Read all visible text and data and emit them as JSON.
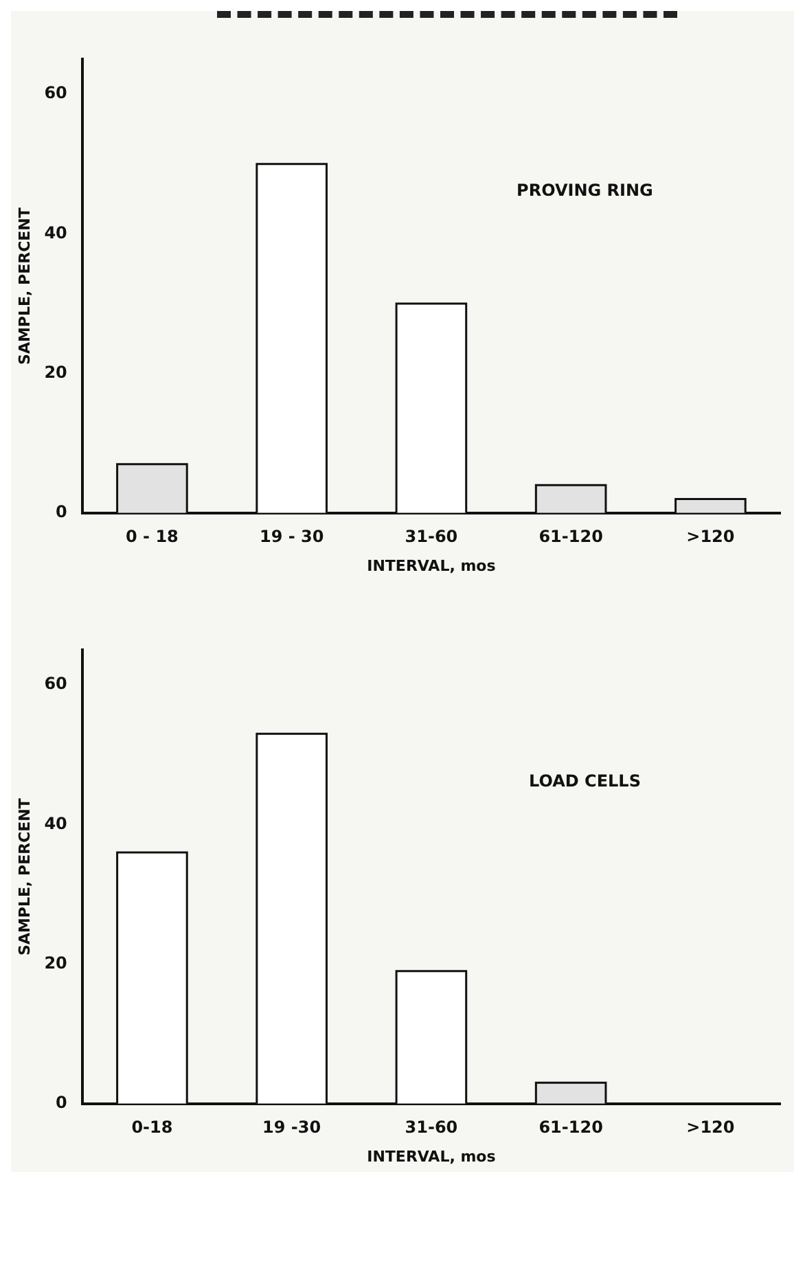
{
  "chart_data": [
    {
      "type": "bar",
      "annotations": [
        "PROVING RING"
      ],
      "xlabel": "INTERVAL, mos",
      "ylabel": "SAMPLE, PERCENT",
      "categories": [
        "0 - 18",
        "19 - 30",
        "31-60",
        "61-120",
        ">120"
      ],
      "values": [
        7,
        50,
        30,
        4,
        2
      ],
      "colors": [
        "#e2e2e2",
        "#ffffff",
        "#ffffff",
        "#e2e2e2",
        "#e2e2e2"
      ],
      "ylim": [
        0,
        65
      ],
      "yticks": [
        0,
        20,
        40,
        60
      ],
      "grid": false,
      "legend": false
    },
    {
      "type": "bar",
      "annotations": [
        "LOAD CELLS"
      ],
      "xlabel": "INTERVAL, mos",
      "ylabel": "SAMPLE, PERCENT",
      "categories": [
        "0-18",
        "19 -30",
        "31-60",
        "61-120",
        ">120"
      ],
      "values": [
        36,
        53,
        19,
        3,
        0
      ],
      "colors": [
        "#ffffff",
        "#ffffff",
        "#ffffff",
        "#e2e2e2",
        "#e2e2e2"
      ],
      "ylim": [
        0,
        65
      ],
      "yticks": [
        0,
        20,
        40,
        60
      ],
      "grid": false,
      "legend": false
    }
  ]
}
